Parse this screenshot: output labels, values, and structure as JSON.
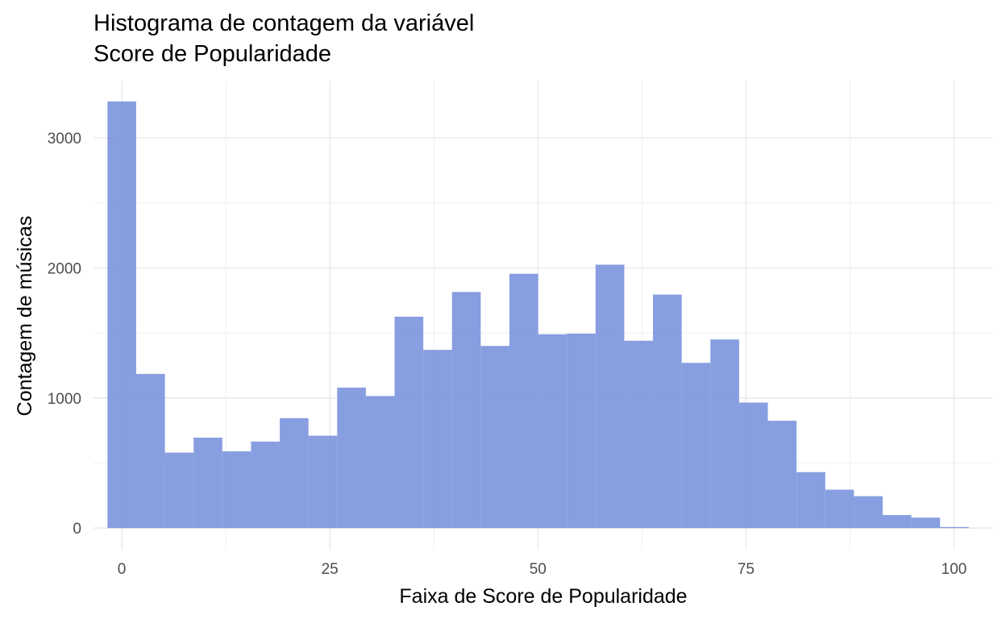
{
  "chart_data": {
    "type": "bar",
    "title": [
      "Histograma de contagem da variável",
      "Score de Popularidade"
    ],
    "xlabel": "Faixa de Score de Popularidade",
    "ylabel": "Contagem de músicas",
    "xlim": [
      -3.4,
      104.7
    ],
    "ylim": [
      -160,
      3440
    ],
    "x_ticks": [
      0,
      25,
      50,
      75,
      100
    ],
    "y_ticks": [
      0,
      1000,
      2000,
      3000
    ],
    "grid": true,
    "bin_width": 3.45,
    "bin_start": -1.72,
    "values": [
      3280,
      1185,
      580,
      695,
      590,
      665,
      845,
      710,
      1080,
      1015,
      1625,
      1370,
      1815,
      1400,
      1955,
      1490,
      1495,
      2025,
      1440,
      1795,
      1270,
      1450,
      965,
      825,
      430,
      295,
      245,
      100,
      80,
      8
    ],
    "bar_color": "#7a94dd"
  }
}
